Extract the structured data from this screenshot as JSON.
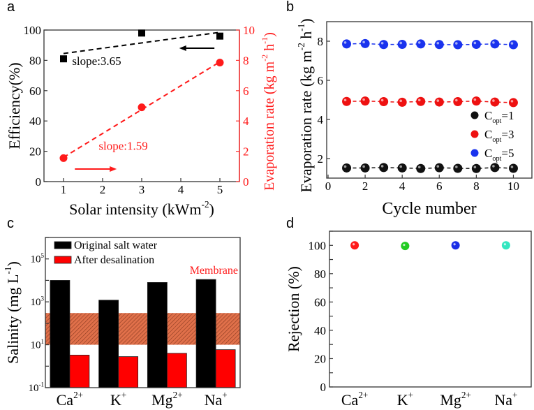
{
  "chart_data": [
    {
      "panel": "a",
      "type": "scatter",
      "xlabel": [
        {
          "t": "Solar intensity (kWm"
        },
        {
          "t": "-2",
          "sup": true
        },
        {
          "t": ")"
        }
      ],
      "ylabel": [
        {
          "t": "Efficiency(%)"
        }
      ],
      "y2label": [
        {
          "t": "Evaporation rate (kg m"
        },
        {
          "t": "-2",
          "sup": true
        },
        {
          "t": " h"
        },
        {
          "t": "-1",
          "sup": true
        },
        {
          "t": ")"
        }
      ],
      "xlim": [
        0.5,
        5.5
      ],
      "ylim": [
        0,
        100
      ],
      "y2lim": [
        0,
        10
      ],
      "xticks": [
        1,
        2,
        3,
        4,
        5
      ],
      "yticks": [
        0,
        20,
        40,
        60,
        80,
        100
      ],
      "y2ticks": [
        0,
        2,
        4,
        6,
        8,
        10
      ],
      "series": [
        {
          "name": "Efficiency",
          "axis": "left",
          "color": "#000000",
          "marker": "square",
          "x": [
            1,
            3,
            5
          ],
          "y": [
            81,
            98,
            96
          ],
          "fit": [
            [
              1,
              84.5
            ],
            [
              5,
              98.5
            ]
          ]
        },
        {
          "name": "Evaporation rate",
          "axis": "right",
          "color": "#ff1a1a",
          "marker": "circle",
          "x": [
            1,
            3,
            5
          ],
          "y": [
            1.55,
            4.9,
            7.85
          ],
          "fit": [
            [
              1,
              1.6
            ],
            [
              5,
              7.9
            ]
          ]
        }
      ],
      "annotations": [
        {
          "text": "slope:3.65",
          "color": "#000000",
          "x": 1.22,
          "y": 77,
          "axis": "left"
        },
        {
          "text": "slope:1.59",
          "color": "#ff1a1a",
          "x": 1.9,
          "y": 2.1,
          "axis": "right"
        }
      ],
      "arrows": [
        {
          "color": "#000000",
          "from": [
            4.86,
            8.8
          ],
          "to": [
            3.96,
            8.8
          ]
        },
        {
          "color": "#ff1a1a",
          "from": [
            1.29,
            0.83
          ],
          "to": [
            2.36,
            0.83
          ]
        }
      ]
    },
    {
      "panel": "b",
      "type": "line",
      "xlabel": [
        {
          "t": "Cycle number"
        }
      ],
      "ylabel": [
        {
          "t": "Evaporation rate (kg m"
        },
        {
          "t": "-2",
          "sup": true
        },
        {
          "t": " h"
        },
        {
          "t": "-1",
          "sup": true
        },
        {
          "t": ")"
        }
      ],
      "xlim": [
        0,
        11
      ],
      "ylim": [
        1,
        9
      ],
      "xticks": [
        0,
        2,
        4,
        6,
        8,
        10
      ],
      "yticks": [
        2,
        4,
        6,
        8
      ],
      "x": [
        1,
        2,
        3,
        4,
        5,
        6,
        7,
        8,
        9,
        10
      ],
      "series": [
        {
          "name": [
            {
              "t": "C"
            },
            {
              "t": "opt",
              "sub": true
            },
            {
              "t": "=1"
            }
          ],
          "color": "#111111",
          "values": [
            1.52,
            1.52,
            1.54,
            1.52,
            1.49,
            1.53,
            1.5,
            1.49,
            1.54,
            1.5
          ]
        },
        {
          "name": [
            {
              "t": "C"
            },
            {
              "t": "opt",
              "sub": true
            },
            {
              "t": "=3"
            }
          ],
          "color": "#ee1111",
          "values": [
            4.92,
            4.94,
            4.91,
            4.88,
            4.92,
            4.89,
            4.91,
            4.94,
            4.89,
            4.86
          ]
        },
        {
          "name": [
            {
              "t": "C"
            },
            {
              "t": "opt",
              "sub": true
            },
            {
              "t": "=5"
            }
          ],
          "color": "#1a33ee",
          "values": [
            7.86,
            7.88,
            7.83,
            7.84,
            7.86,
            7.83,
            7.82,
            7.84,
            7.86,
            7.82
          ]
        }
      ],
      "legend": "right-middle"
    },
    {
      "panel": "c",
      "type": "bar",
      "yscale": "log",
      "ylabel": [
        {
          "t": "Salinity (mg L"
        },
        {
          "t": "-1",
          "sup": true
        },
        {
          "t": ")"
        }
      ],
      "categories": [
        [
          {
            "t": "Ca"
          },
          {
            "t": "2+",
            "sup": true
          }
        ],
        [
          {
            "t": "K"
          },
          {
            "t": "+",
            "sup": true
          }
        ],
        [
          {
            "t": "Mg"
          },
          {
            "t": "2+",
            "sup": true
          }
        ],
        [
          {
            "t": "Na"
          },
          {
            "t": "+",
            "sup": true
          }
        ]
      ],
      "ylim_exp": [
        -1,
        6
      ],
      "yticks": [
        {
          "exp": -1,
          "label": [
            {
              "t": "10"
            },
            {
              "t": "-1",
              "sup": true
            }
          ]
        },
        {
          "exp": 1,
          "label": [
            {
              "t": "10"
            },
            {
              "t": "1",
              "sup": true
            }
          ]
        },
        {
          "exp": 3,
          "label": [
            {
              "t": "10"
            },
            {
              "t": "3",
              "sup": true
            }
          ]
        },
        {
          "exp": 5,
          "label": [
            {
              "t": "10"
            },
            {
              "t": "5",
              "sup": true
            }
          ]
        }
      ],
      "series": [
        {
          "name": "Original salt water",
          "color": "#000000",
          "values": [
            10000,
            1200,
            8000,
            11000
          ]
        },
        {
          "name": "After desalination",
          "color": "#ff0000",
          "values": [
            3.3,
            2.8,
            4.0,
            5.9
          ]
        }
      ],
      "band": {
        "label": "Membrane",
        "from": 10,
        "to": 300,
        "color": "#e0704a",
        "label_color": "#ff1a1a"
      },
      "legend": "top-left"
    },
    {
      "panel": "d",
      "type": "scatter",
      "ylabel": [
        {
          "t": "Rejection (%)"
        }
      ],
      "categories": [
        [
          {
            "t": "Ca"
          },
          {
            "t": "2+",
            "sup": true
          }
        ],
        [
          {
            "t": "K"
          },
          {
            "t": "+",
            "sup": true
          }
        ],
        [
          {
            "t": "Mg"
          },
          {
            "t": "2+",
            "sup": true
          }
        ],
        [
          {
            "t": "Na"
          },
          {
            "t": "+",
            "sup": true
          }
        ]
      ],
      "ylim": [
        0,
        110
      ],
      "yticks": [
        0,
        20,
        40,
        60,
        80,
        100
      ],
      "values": [
        100,
        99.6,
        100,
        100
      ],
      "colors": [
        "#ff1a1a",
        "#22cc22",
        "#1a2ee6",
        "#33e6c0"
      ]
    }
  ],
  "panel_labels": [
    "a",
    "b",
    "c",
    "d"
  ]
}
